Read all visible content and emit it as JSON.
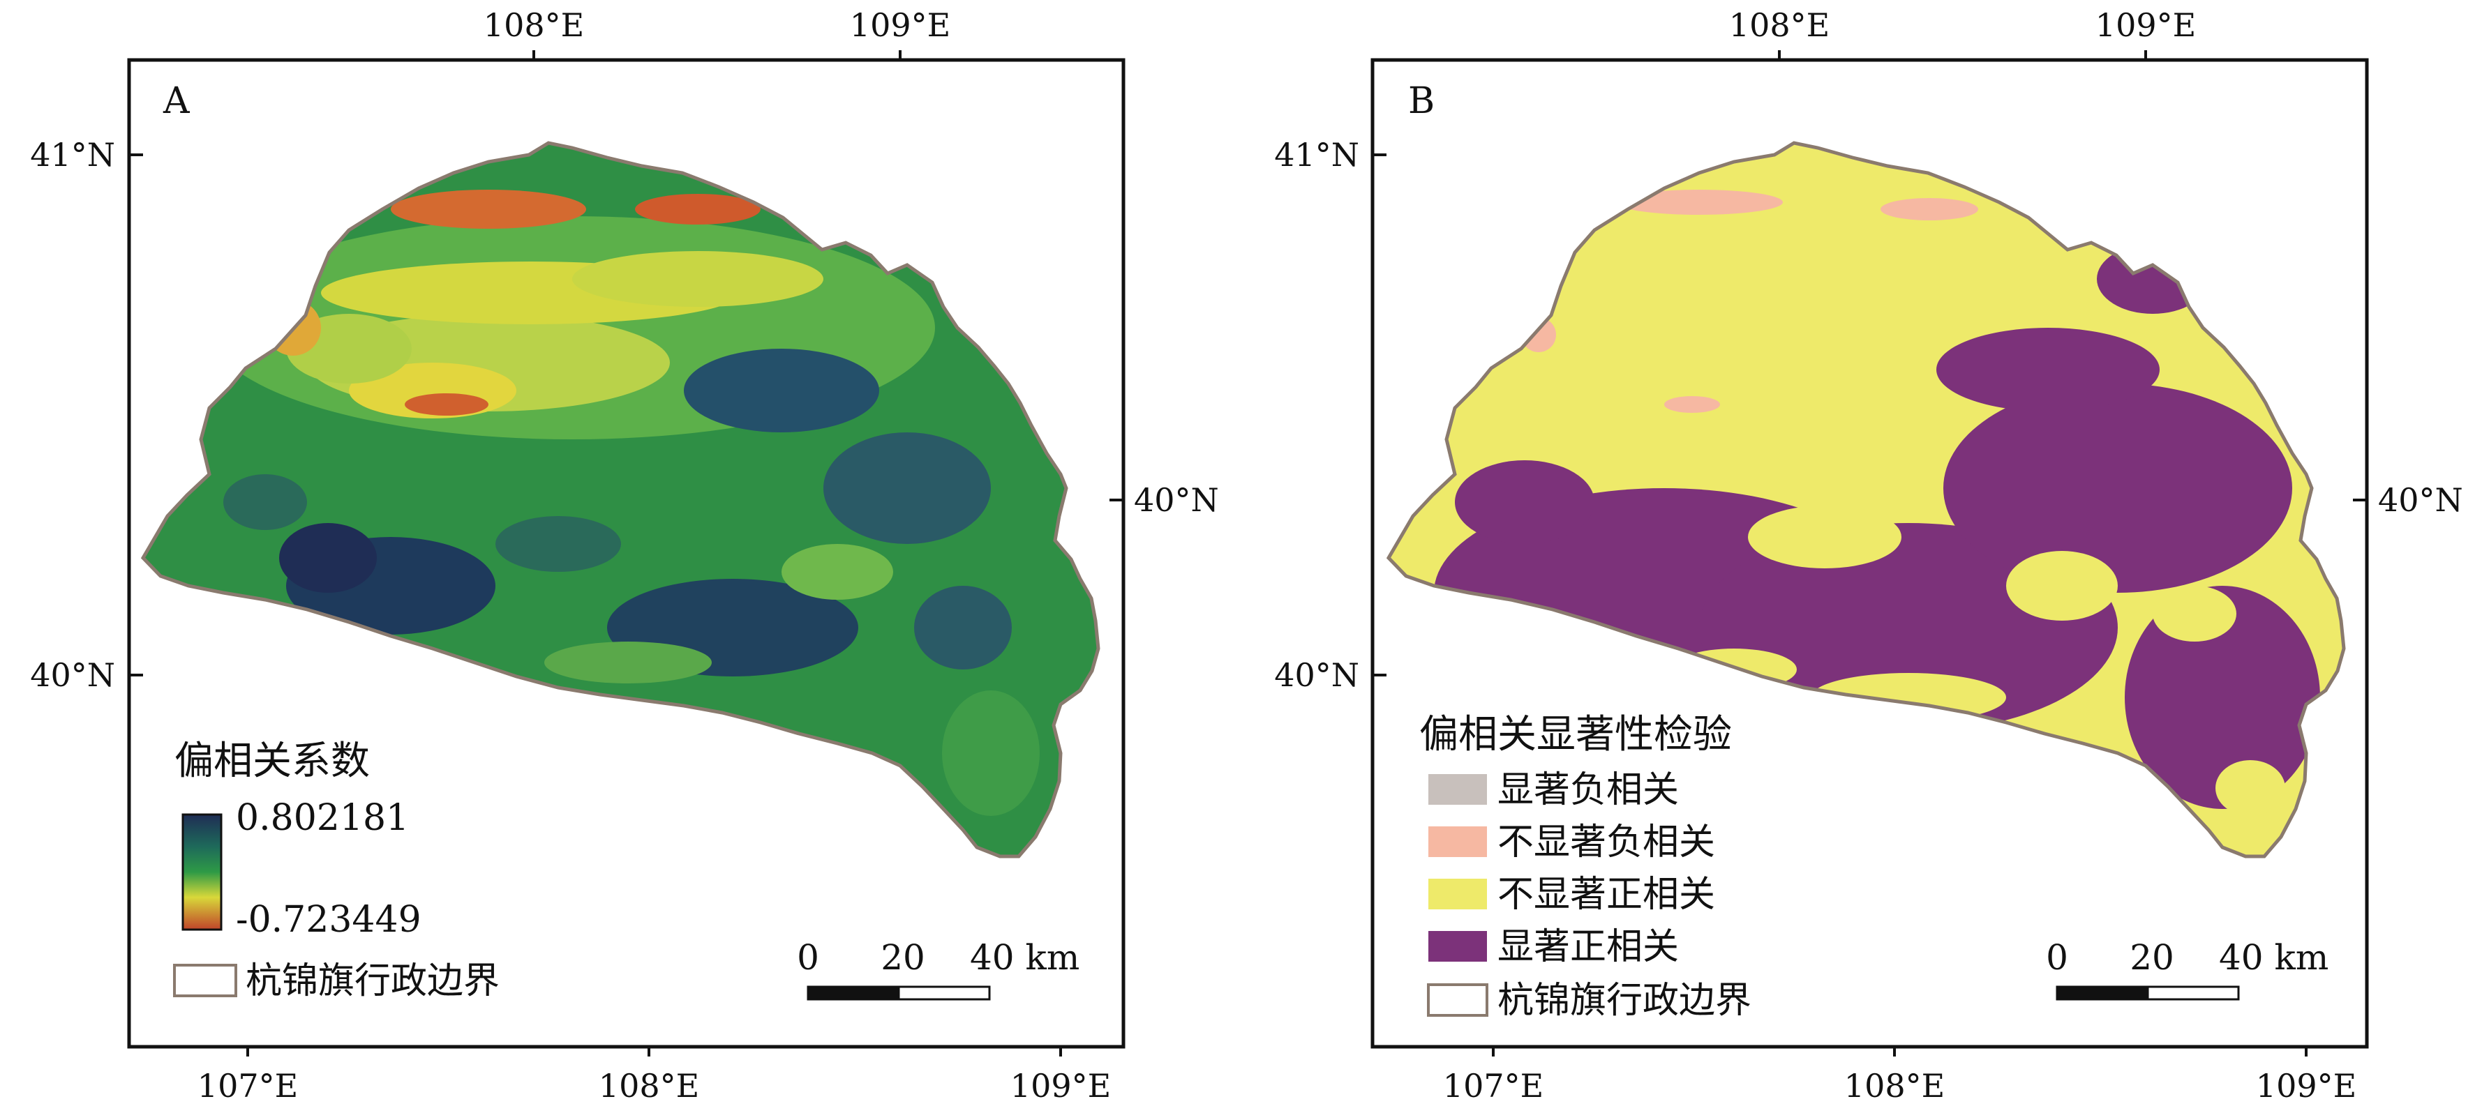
{
  "panel_a": {
    "letter": "A",
    "top_ticks": [
      "108°E",
      "109°E"
    ],
    "bottom_ticks": [
      "107°E",
      "108°E",
      "109°E"
    ],
    "left_ticks": [
      "41°N",
      "40°N"
    ],
    "right_ticks": [
      "40°N"
    ],
    "legend": {
      "title": "偏相关系数",
      "max_label": "0.802181",
      "min_label": "-0.723449",
      "boundary_label": "杭锦旗行政边界"
    },
    "scale": {
      "labels": [
        "0",
        "20",
        "40 km"
      ]
    }
  },
  "panel_b": {
    "letter": "B",
    "top_ticks": [
      "108°E",
      "109°E"
    ],
    "bottom_ticks": [
      "107°E",
      "108°E",
      "109°E"
    ],
    "left_ticks": [
      "41°N",
      "40°N"
    ],
    "right_ticks": [
      "40°N"
    ],
    "legend": {
      "title": "偏相关显著性检验",
      "items": [
        {
          "label": "显著负相关",
          "color": "#c8c0bc"
        },
        {
          "label": "不显著负相关",
          "color": "#f6b8a2"
        },
        {
          "label": "不显著正相关",
          "color": "#eeea6a"
        },
        {
          "label": "显著正相关",
          "color": "#7c327a"
        }
      ],
      "boundary_label": "杭锦旗行政边界"
    },
    "scale": {
      "labels": [
        "0",
        "20",
        "40 km"
      ]
    }
  },
  "colors": {
    "coef_high": "#1f2d55",
    "coef_mid": "#2e9a46",
    "coef_low": "#c0442a",
    "boundary": "#8a7a6e"
  }
}
